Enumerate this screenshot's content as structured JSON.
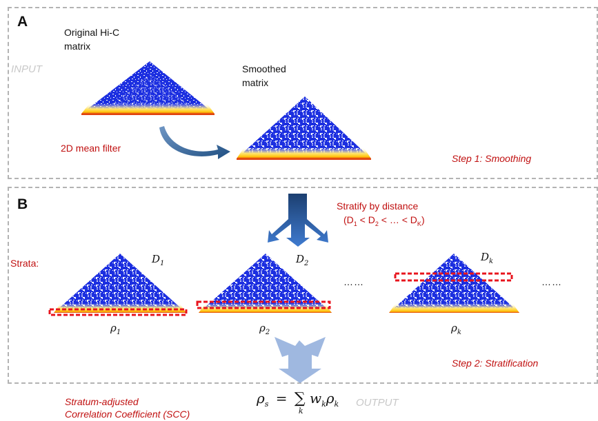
{
  "panel_a": {
    "letter": "A",
    "input_label": "INPUT",
    "original_title_line1": "Original Hi-C",
    "original_title_line2": "matrix",
    "smoothed_title_line1": "Smoothed",
    "smoothed_title_line2": "matrix",
    "filter_label": "2D mean filter",
    "step_label": "Step 1: Smoothing"
  },
  "panel_b": {
    "letter": "B",
    "stratify_line1": "Stratify by distance",
    "stratify_line2_parts": {
      "open": "(D",
      "s1": "1",
      "lt1": " < D",
      "s2": "2",
      "lt2": " < … < D",
      "sk": "K",
      "close": ")"
    },
    "strata_label": "Strata:",
    "distances": [
      {
        "base": "D",
        "sub": "1"
      },
      {
        "base": "D",
        "sub": "2"
      },
      {
        "base": "D",
        "sub": "k"
      }
    ],
    "rhos": [
      {
        "base": "ρ",
        "sub": "1"
      },
      {
        "base": "ρ",
        "sub": "2"
      },
      {
        "base": "ρ",
        "sub": "k"
      }
    ],
    "ellipsis_a": "……",
    "ellipsis_b": "……",
    "step_label": "Step 2: Stratification"
  },
  "output": {
    "label": "OUTPUT",
    "scc_line1": "Stratum-adjusted",
    "scc_line2": "Correlation Coefficient (SCC)",
    "formula": {
      "lhs": "ρ",
      "lhs_sub": "s",
      "eq": "=",
      "sum": "∑",
      "sum_sub": "k",
      "w": "w",
      "w_sub": "k",
      "rho": "ρ",
      "rho_sub": "k"
    }
  },
  "colors": {
    "heatmap_blue": "#1c2fe0",
    "heatmap_yellow": "#ffd21a",
    "heatmap_red": "#e0420f",
    "strata_box": "#e8141d",
    "arrow_dark": "#2e5f93",
    "arrow_light": "#8eacda",
    "annotation_red": "#c01010",
    "panel_border": "#b3b3b3"
  }
}
